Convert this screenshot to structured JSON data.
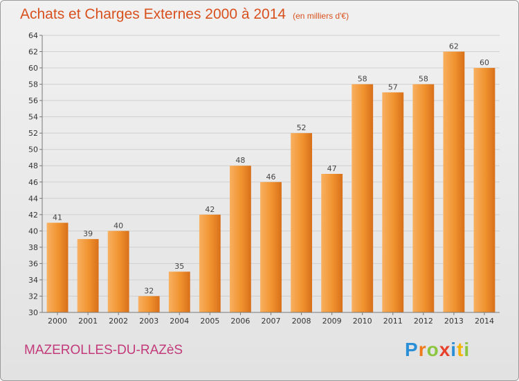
{
  "header": {
    "title": "Achats et Charges Externes 2000 à 2014",
    "subtitle": "(en milliers d'€)"
  },
  "footer": {
    "town": "MAZEROLLES-DU-RAZèS",
    "logo_letters": [
      {
        "ch": "P",
        "color": "#2a8fd6"
      },
      {
        "ch": "r",
        "color": "#ef7a1a"
      },
      {
        "ch": "o",
        "color": "#8cc63f"
      },
      {
        "ch": "x",
        "color": "#e8412c"
      },
      {
        "ch": "i",
        "color": "#2a8fd6"
      },
      {
        "ch": "t",
        "color": "#f4b400"
      },
      {
        "ch": "i",
        "color": "#8cc63f"
      }
    ]
  },
  "chart_data": {
    "type": "bar",
    "title": "Achats et Charges Externes 2000 à 2014",
    "subtitle": "(en milliers d'€)",
    "categories": [
      "2000",
      "2001",
      "2002",
      "2003",
      "2004",
      "2005",
      "2006",
      "2007",
      "2008",
      "2009",
      "2010",
      "2011",
      "2012",
      "2013",
      "2014"
    ],
    "values": [
      41,
      39,
      40,
      32,
      35,
      42,
      48,
      46,
      52,
      47,
      58,
      57,
      58,
      62,
      60
    ],
    "ylim": [
      30,
      64
    ],
    "yticks": [
      30,
      32,
      34,
      36,
      38,
      40,
      42,
      44,
      46,
      48,
      50,
      52,
      54,
      56,
      58,
      60,
      62,
      64
    ],
    "grid": true,
    "bar_color": "#f0922e",
    "bar_color_light": "#f8b060",
    "bar_color_dark": "#d8701a"
  }
}
